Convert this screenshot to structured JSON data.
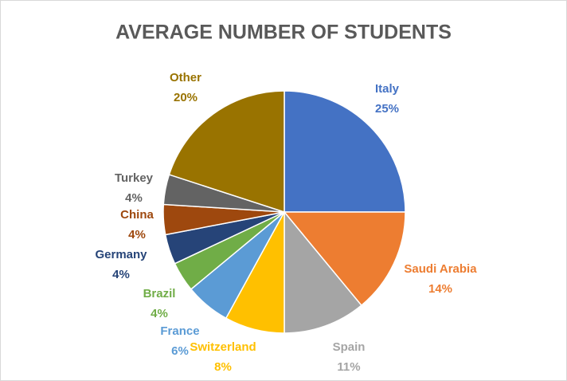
{
  "chart_data": {
    "type": "pie",
    "title": "AVERAGE NUMBER OF STUDENTS",
    "categories": [
      "Italy",
      "Saudi Arabia",
      "Spain",
      "Switzerland",
      "France",
      "Brazil",
      "Germany",
      "China",
      "Turkey",
      "Other"
    ],
    "values": [
      25,
      14,
      11,
      8,
      6,
      4,
      4,
      4,
      4,
      20
    ],
    "value_labels": [
      "25%",
      "14%",
      "11%",
      "8%",
      "6%",
      "4%",
      "4%",
      "4%",
      "4%",
      "20%"
    ],
    "colors": [
      "#4472c4",
      "#ed7d31",
      "#a5a5a5",
      "#ffc000",
      "#5b9bd5",
      "#70ad47",
      "#264478",
      "#9e480e",
      "#636363",
      "#997300"
    ]
  }
}
